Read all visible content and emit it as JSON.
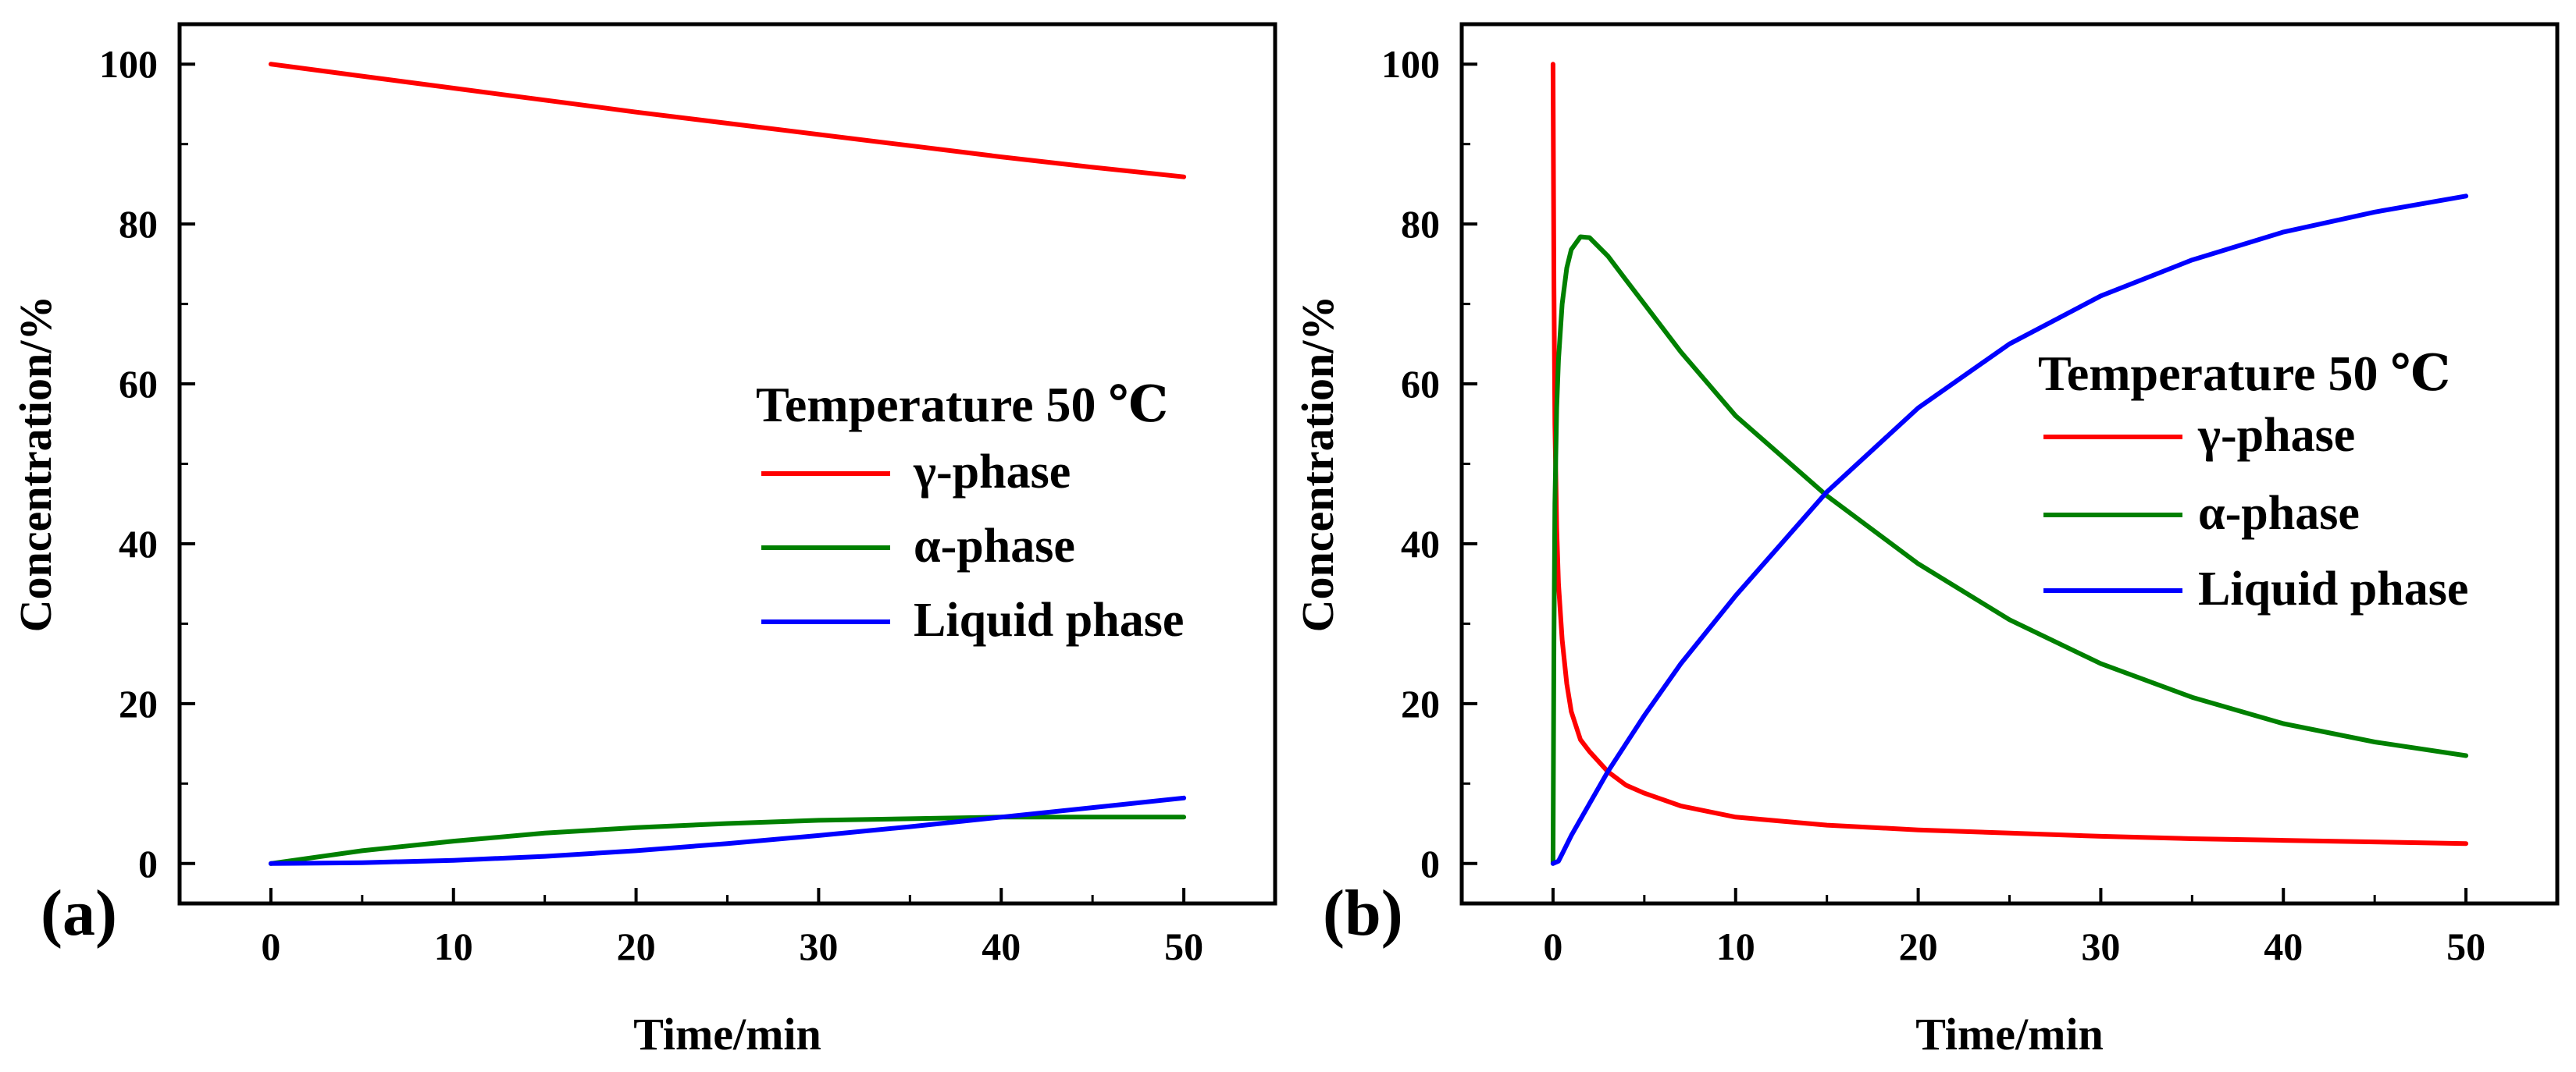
{
  "chart_data": [
    {
      "panel_label": "(a)",
      "type": "line",
      "xlabel": "Time/min",
      "ylabel": "Concentration/%",
      "xlim": [
        -5,
        55
      ],
      "ylim": [
        -5,
        105
      ],
      "xticks": [
        0,
        10,
        20,
        30,
        40,
        50
      ],
      "yticks": [
        0,
        20,
        40,
        60,
        80,
        100
      ],
      "xtick_labels": [
        "0",
        "10",
        "20",
        "30",
        "40",
        "50"
      ],
      "ytick_labels": [
        "0",
        "20",
        "40",
        "60",
        "80",
        "100"
      ],
      "grid": false,
      "legend": {
        "title": "Temperature 50 ℃",
        "position": "center-right",
        "entries": [
          "γ-phase",
          "α-phase",
          "Liquid phase"
        ]
      },
      "series": [
        {
          "name": "γ-phase",
          "color": "#ff0000",
          "x": [
            0,
            5,
            10,
            15,
            20,
            25,
            30,
            35,
            40,
            45,
            50
          ],
          "y": [
            100,
            98.5,
            97,
            95.5,
            94,
            92.6,
            91.2,
            89.8,
            88.4,
            87.1,
            85.9
          ]
        },
        {
          "name": "α-phase",
          "color": "#008000",
          "x": [
            0,
            5,
            10,
            15,
            20,
            25,
            30,
            35,
            40,
            45,
            50
          ],
          "y": [
            0,
            1.6,
            2.8,
            3.8,
            4.5,
            5.0,
            5.4,
            5.6,
            5.8,
            5.8,
            5.8
          ]
        },
        {
          "name": "Liquid phase",
          "color": "#0000ff",
          "x": [
            0,
            5,
            10,
            15,
            20,
            25,
            30,
            35,
            40,
            45,
            50
          ],
          "y": [
            0,
            0.1,
            0.4,
            0.9,
            1.6,
            2.5,
            3.5,
            4.6,
            5.8,
            7.0,
            8.2
          ]
        }
      ]
    },
    {
      "panel_label": "(b)",
      "type": "line",
      "xlabel": "Time/min",
      "ylabel": "Concentration/%",
      "xlim": [
        -5,
        55
      ],
      "ylim": [
        -5,
        105
      ],
      "xticks": [
        0,
        10,
        20,
        30,
        40,
        50
      ],
      "yticks": [
        0,
        20,
        40,
        60,
        80,
        100
      ],
      "xtick_labels": [
        "0",
        "10",
        "20",
        "30",
        "40",
        "50"
      ],
      "ytick_labels": [
        "0",
        "20",
        "40",
        "60",
        "80",
        "100"
      ],
      "grid": false,
      "legend": {
        "title": "Temperature 50 ℃",
        "position": "center-right",
        "entries": [
          "γ-phase",
          "α-phase",
          "Liquid phase"
        ]
      },
      "series": [
        {
          "name": "γ-phase",
          "color": "#ff0000",
          "x": [
            0,
            0.05,
            0.1,
            0.2,
            0.3,
            0.5,
            0.75,
            1,
            1.5,
            2,
            3,
            4,
            5,
            7,
            10,
            15,
            20,
            25,
            30,
            35,
            40,
            45,
            50
          ],
          "y": [
            100,
            72,
            55,
            42,
            35,
            28,
            22.5,
            19,
            15.5,
            14,
            11.5,
            9.8,
            8.8,
            7.2,
            5.8,
            4.8,
            4.2,
            3.8,
            3.4,
            3.1,
            2.9,
            2.7,
            2.5
          ]
        },
        {
          "name": "α-phase",
          "color": "#008000",
          "x": [
            0,
            0.05,
            0.1,
            0.2,
            0.3,
            0.5,
            0.75,
            1,
            1.5,
            2,
            3,
            4,
            5,
            7,
            10,
            15,
            20,
            25,
            30,
            35,
            40,
            45,
            50
          ],
          "y": [
            0,
            28,
            45,
            57,
            63,
            70,
            74.5,
            76.8,
            78.4,
            78.3,
            76,
            73,
            70,
            64,
            56,
            46,
            37.5,
            30.5,
            25,
            20.8,
            17.5,
            15.2,
            13.5
          ]
        },
        {
          "name": "Liquid phase",
          "color": "#0000ff",
          "x": [
            0,
            0.3,
            0.5,
            1,
            1.5,
            2,
            3,
            4,
            5,
            7,
            10,
            15,
            20,
            25,
            30,
            35,
            40,
            45,
            50
          ],
          "y": [
            0,
            0.3,
            1.2,
            3.5,
            5.5,
            7.5,
            11.5,
            15,
            18.5,
            25,
            33.5,
            46.5,
            57,
            65,
            71,
            75.5,
            79,
            81.5,
            83.5
          ]
        }
      ]
    }
  ]
}
